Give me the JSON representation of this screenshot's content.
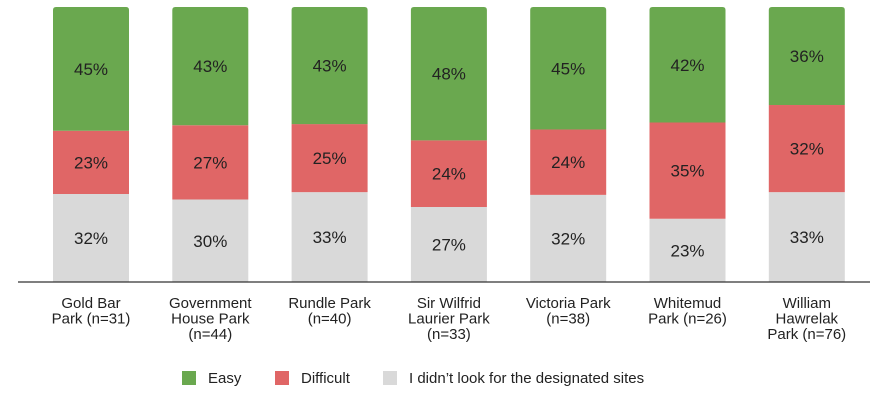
{
  "chart_data": {
    "type": "bar",
    "stacked": true,
    "percent": true,
    "categories": [
      [
        "Gold Bar",
        "Park (n=31)"
      ],
      [
        "Government",
        "House Park",
        "(n=44)"
      ],
      [
        "Rundle Park",
        "(n=40)"
      ],
      [
        "Sir Wilfrid",
        "Laurier Park",
        "(n=33)"
      ],
      [
        "Victoria Park",
        "(n=38)"
      ],
      [
        "Whitemud",
        "Park (n=26)"
      ],
      [
        "William",
        "Hawrelak",
        "Park (n=76)"
      ]
    ],
    "series": [
      {
        "name": "Easy",
        "color": "#6aa84f",
        "values": [
          45,
          43,
          43,
          48,
          45,
          42,
          36
        ]
      },
      {
        "name": "Difficult",
        "color": "#e06666",
        "values": [
          23,
          27,
          25,
          24,
          24,
          35,
          32
        ]
      },
      {
        "name": "I didn’t look for the designated sites",
        "color": "#d9d9d9",
        "values": [
          32,
          30,
          33,
          27,
          32,
          23,
          33
        ]
      }
    ],
    "ylim": [
      0,
      100
    ],
    "legend_position": "bottom",
    "grid": false
  }
}
